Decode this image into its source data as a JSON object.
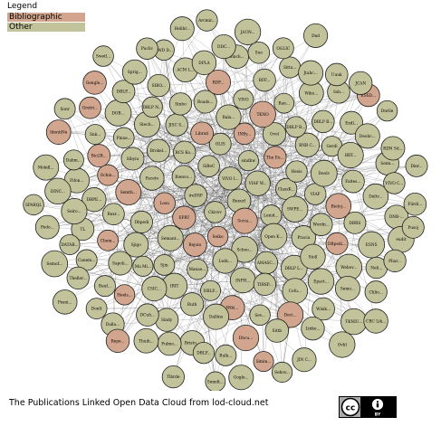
{
  "legend": {
    "title": "Legend",
    "items": [
      {
        "label": "Bibliographic",
        "color": "#d2a68e"
      },
      {
        "label": "Other",
        "color": "#c3c39b"
      }
    ]
  },
  "caption": "The Publications Linked Open Data Cloud from lod-cloud.net",
  "license_badge": {
    "text": "cc",
    "sub": "BY"
  },
  "colors": {
    "bibliographic": "#d2a68e",
    "other": "#c3c39b",
    "node_stroke": "#222222",
    "edge": "#555555"
  },
  "nodes": [
    {
      "label": "Rexurl",
      "type": "other"
    },
    {
      "label": "Ckivov",
      "type": "other"
    },
    {
      "label": "VIVO I...",
      "type": "other"
    },
    {
      "label": "Socia...",
      "type": "bibliographic"
    },
    {
      "label": "ireDSF",
      "type": "other"
    },
    {
      "label": "VIAF W...",
      "type": "other"
    },
    {
      "label": "Seiko",
      "type": "bibliographic"
    },
    {
      "label": "SiBeC",
      "type": "other"
    },
    {
      "label": "Lenid...",
      "type": "other"
    },
    {
      "label": "EPRT",
      "type": "bibliographic"
    },
    {
      "label": "sindbw",
      "type": "other"
    },
    {
      "label": "Schoo...",
      "type": "other"
    },
    {
      "label": "Bienvo...",
      "type": "other"
    },
    {
      "label": "ClassK...",
      "type": "other"
    },
    {
      "label": "Rejoin",
      "type": "bibliographic"
    },
    {
      "label": "OLIS",
      "type": "other"
    },
    {
      "label": "Open K...",
      "type": "other"
    },
    {
      "label": "Losu",
      "type": "bibliographic"
    },
    {
      "label": "The Eu...",
      "type": "bibliographic"
    },
    {
      "label": "Lwik...",
      "type": "other"
    },
    {
      "label": "RCS Ko...",
      "type": "other"
    },
    {
      "label": "SWPE...",
      "type": "other"
    },
    {
      "label": "Semant...",
      "type": "other"
    },
    {
      "label": "INBy...",
      "type": "bibliographic"
    },
    {
      "label": "AMASC...",
      "type": "other"
    },
    {
      "label": "Faceto",
      "type": "other"
    },
    {
      "label": "Hesis",
      "type": "other"
    },
    {
      "label": "Manao...",
      "type": "other"
    },
    {
      "label": "Librati",
      "type": "bibliographic"
    },
    {
      "label": "Pracia",
      "type": "other"
    },
    {
      "label": "Dbpedi",
      "type": "other"
    },
    {
      "label": "Ovol",
      "type": "other"
    },
    {
      "label": "INPH...",
      "type": "other"
    },
    {
      "label": "Brokel...",
      "type": "other"
    },
    {
      "label": "VIAF",
      "type": "other"
    },
    {
      "label": "Sjin",
      "type": "other"
    },
    {
      "label": "Bala...",
      "type": "other"
    },
    {
      "label": "DBLP L...",
      "type": "other"
    },
    {
      "label": "Semth...",
      "type": "bibliographic"
    },
    {
      "label": "BNB C...",
      "type": "other"
    },
    {
      "label": "DBLP...",
      "type": "other"
    },
    {
      "label": "JISC S...",
      "type": "other"
    },
    {
      "label": "Wordn...",
      "type": "other"
    },
    {
      "label": "Sjigo",
      "type": "other"
    },
    {
      "label": "TKNO",
      "type": "bibliographic"
    },
    {
      "label": "TIBSP...",
      "type": "other"
    },
    {
      "label": "Sibyiu",
      "type": "other"
    },
    {
      "label": "Deolv",
      "type": "other"
    },
    {
      "label": "IRIT",
      "type": "other"
    },
    {
      "label": "Roads...",
      "type": "other"
    },
    {
      "label": "Stoll",
      "type": "other"
    },
    {
      "label": "Rexr...",
      "type": "other"
    },
    {
      "label": "DBLP R...",
      "type": "other"
    },
    {
      "label": "Wiki...",
      "type": "bibliographic"
    },
    {
      "label": "Stech...",
      "type": "other"
    },
    {
      "label": "Bioloj...",
      "type": "bibliographic"
    },
    {
      "label": "Ma Mi...",
      "type": "other"
    },
    {
      "label": "VIVO",
      "type": "other"
    },
    {
      "label": "Cofu...",
      "type": "other"
    },
    {
      "label": "Ochin...",
      "type": "bibliographic"
    },
    {
      "label": "Gerdi",
      "type": "other"
    },
    {
      "label": "Ruth",
      "type": "other"
    },
    {
      "label": "Sinbo",
      "type": "other"
    },
    {
      "label": "DBpedi...",
      "type": "bibliographic"
    },
    {
      "label": "Chem...",
      "type": "bibliographic"
    },
    {
      "label": "Ban...",
      "type": "other"
    },
    {
      "label": "Sev...",
      "type": "other"
    },
    {
      "label": "Pinxe...",
      "type": "other"
    },
    {
      "label": "Faltes...",
      "type": "other"
    },
    {
      "label": "CSIC...",
      "type": "other"
    },
    {
      "label": "RDF...",
      "type": "bibliographic"
    },
    {
      "label": "Epact...",
      "type": "other"
    },
    {
      "label": "DBPE...",
      "type": "other"
    },
    {
      "label": "DBLP B...",
      "type": "other"
    },
    {
      "label": "Dallins",
      "type": "other"
    },
    {
      "label": "DBLP N...",
      "type": "other"
    },
    {
      "label": "DBRS",
      "type": "other"
    },
    {
      "label": "Sapoli...",
      "type": "other"
    },
    {
      "label": "BFF...",
      "type": "other"
    },
    {
      "label": "Deci...",
      "type": "bibliographic"
    },
    {
      "label": "Bio2R...",
      "type": "bibliographic"
    },
    {
      "label": "BRT...",
      "type": "other"
    },
    {
      "label": "Sindy",
      "type": "other"
    },
    {
      "label": "ACM L...",
      "type": "other"
    },
    {
      "label": "Webov...",
      "type": "other"
    },
    {
      "label": "TL",
      "type": "other"
    },
    {
      "label": "Wiko...",
      "type": "other"
    },
    {
      "label": "Dbcu...",
      "type": "bibliographic"
    },
    {
      "label": "DOB...",
      "type": "other"
    },
    {
      "label": "Deltv...",
      "type": "other"
    },
    {
      "label": "Heels...",
      "type": "bibliographic"
    },
    {
      "label": "Sinch...",
      "type": "other"
    },
    {
      "label": "Wisik...",
      "type": "other"
    },
    {
      "label": "Fifon...",
      "type": "other"
    },
    {
      "label": "Exdl...",
      "type": "other"
    },
    {
      "label": "Bristo...",
      "type": "other"
    },
    {
      "label": "SIBO...",
      "type": "other"
    },
    {
      "label": "ESNS",
      "type": "other"
    },
    {
      "label": "Canem...",
      "type": "other"
    },
    {
      "label": "Sitta...",
      "type": "other"
    },
    {
      "label": "Sitth",
      "type": "other"
    },
    {
      "label": "Snk...",
      "type": "other"
    },
    {
      "label": "Seim...",
      "type": "other"
    },
    {
      "label": "DCuh...",
      "type": "other"
    },
    {
      "label": "DPLA",
      "type": "other"
    },
    {
      "label": "Semo...",
      "type": "other"
    },
    {
      "label": "Seiro...",
      "type": "other"
    },
    {
      "label": "Ssh...",
      "type": "other"
    },
    {
      "label": "Bulk...",
      "type": "other"
    },
    {
      "label": "DBLP...",
      "type": "other"
    },
    {
      "label": "DNB-...",
      "type": "other"
    },
    {
      "label": "Bauf...",
      "type": "other"
    },
    {
      "label": "Suo",
      "type": "other"
    },
    {
      "label": "Linke...",
      "type": "other"
    },
    {
      "label": "Dahm...",
      "type": "other"
    },
    {
      "label": "Deolic...",
      "type": "other"
    },
    {
      "label": "Pulmo...",
      "type": "other"
    },
    {
      "label": "SWD D...",
      "type": "other"
    },
    {
      "label": "Neli...",
      "type": "other"
    },
    {
      "label": "DATAB...",
      "type": "other"
    },
    {
      "label": "Jtahc...",
      "type": "other"
    },
    {
      "label": "Simin...",
      "type": "bibliographic"
    },
    {
      "label": "Gretri...",
      "type": "bibliographic"
    },
    {
      "label": "VIVO C...",
      "type": "other"
    },
    {
      "label": "Dalla...",
      "type": "other"
    },
    {
      "label": "DDC...",
      "type": "other"
    },
    {
      "label": "TKNIU...",
      "type": "other"
    },
    {
      "label": "DINC...",
      "type": "other"
    },
    {
      "label": "ESSD...",
      "type": "bibliographic"
    },
    {
      "label": "DBLP...",
      "type": "other"
    },
    {
      "label": "Sprig...",
      "type": "other"
    },
    {
      "label": "eudit",
      "type": "other"
    },
    {
      "label": "Theller...",
      "type": "other"
    },
    {
      "label": "OGLIC",
      "type": "other"
    },
    {
      "label": "JIN C...",
      "type": "other"
    },
    {
      "label": "IdentiNe",
      "type": "bibliographic"
    },
    {
      "label": "RDN Sd...",
      "type": "other"
    },
    {
      "label": "Thuih...",
      "type": "other"
    },
    {
      "label": "Helibr...",
      "type": "other"
    },
    {
      "label": "Chlio...",
      "type": "other"
    },
    {
      "label": "Pedo...",
      "type": "other"
    },
    {
      "label": "Uuuk",
      "type": "other"
    },
    {
      "label": "Gogle...",
      "type": "other"
    },
    {
      "label": "Gengle...",
      "type": "bibliographic"
    },
    {
      "label": "Fiirdi...",
      "type": "other"
    },
    {
      "label": "Doelt",
      "type": "other"
    },
    {
      "label": "JAUN...",
      "type": "other"
    },
    {
      "label": "Ovhl",
      "type": "other"
    },
    {
      "label": "Mokdl...",
      "type": "other"
    },
    {
      "label": "Dnrile",
      "type": "other"
    },
    {
      "label": "Tlbrde",
      "type": "other"
    },
    {
      "label": "Puclic",
      "type": "other"
    },
    {
      "label": "Pliar...",
      "type": "other"
    },
    {
      "label": "Semof...",
      "type": "other"
    },
    {
      "label": "Dnd",
      "type": "other"
    },
    {
      "label": "Sehov...",
      "type": "other"
    },
    {
      "label": "Sonr",
      "type": "other"
    },
    {
      "label": "Dinr...",
      "type": "other"
    },
    {
      "label": "Repe...",
      "type": "bibliographic"
    },
    {
      "label": "Arcmir...",
      "type": "other"
    },
    {
      "label": "CBC Lik...",
      "type": "other"
    },
    {
      "label": "SPARQL",
      "type": "other"
    },
    {
      "label": "JCAN",
      "type": "other"
    },
    {
      "label": "Semdt...",
      "type": "other"
    },
    {
      "label": "Swetl...",
      "type": "other"
    },
    {
      "label": "Pusoj",
      "type": "other"
    },
    {
      "label": "Pesni...",
      "type": "other"
    }
  ]
}
